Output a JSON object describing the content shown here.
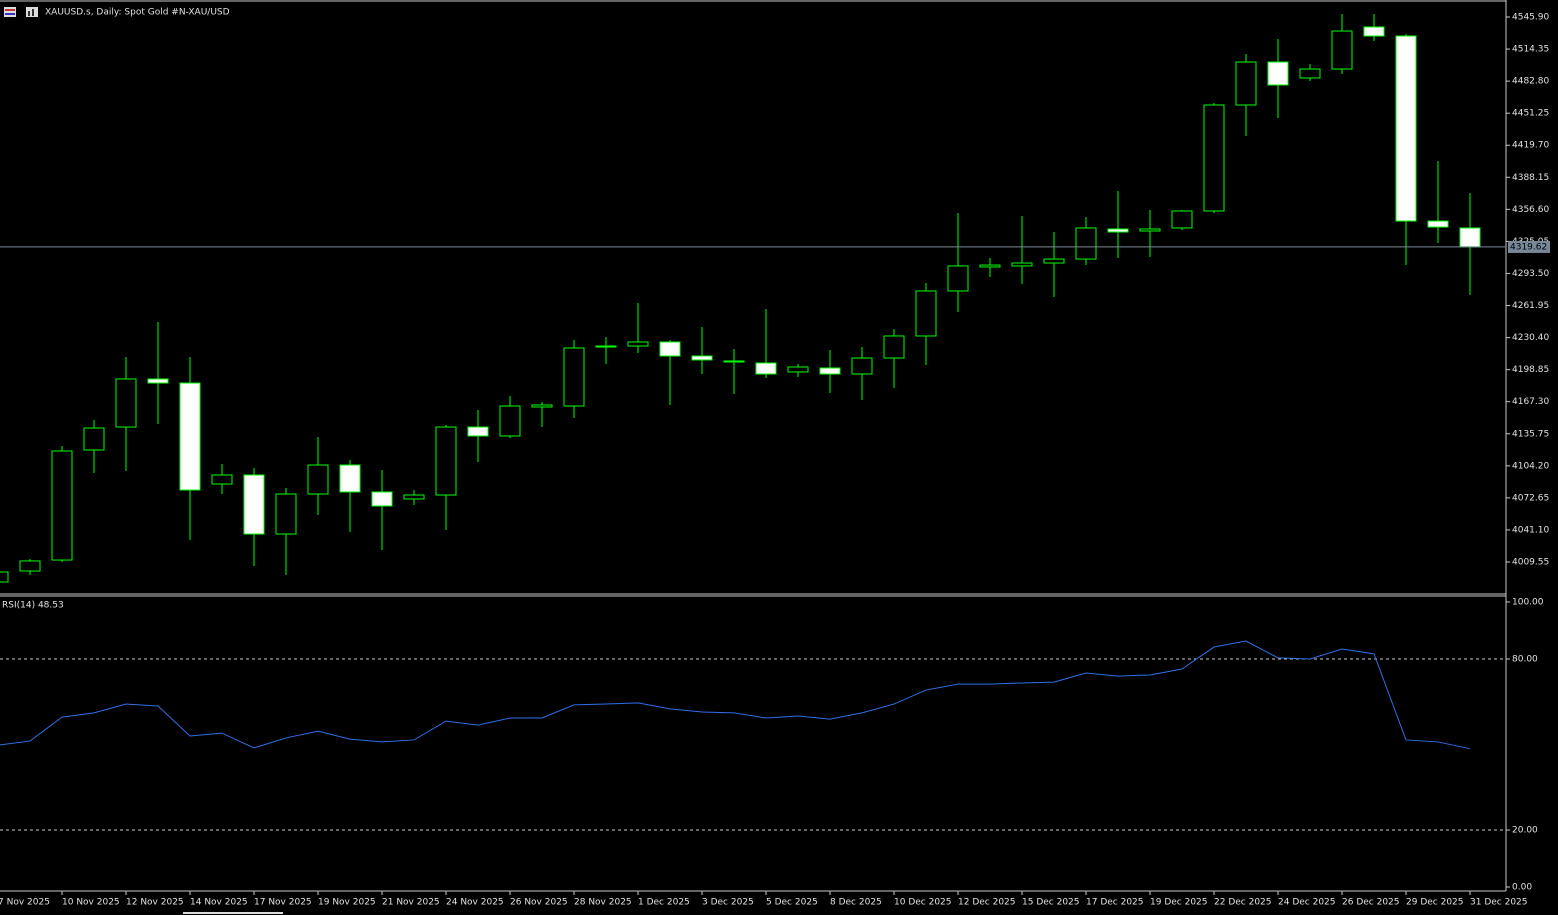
{
  "chart_data": [
    {
      "type": "candlestick",
      "title": "XAUUSD.s, Daily:  Spot Gold #N-XAU/USD",
      "categories": [
        "7 Nov 2025",
        null,
        "10 Nov 2025",
        null,
        "12 Nov 2025",
        null,
        "14 Nov 2025",
        null,
        "17 Nov 2025",
        null,
        "19 Nov 2025",
        null,
        "21 Nov 2025",
        null,
        "24 Nov 2025",
        null,
        "26 Nov 2025",
        null,
        "28 Nov 2025",
        null,
        "1 Dec 2025",
        null,
        "3 Dec 2025",
        null,
        "5 Dec 2025",
        null,
        "8 Dec 2025",
        null,
        "10 Dec 2025",
        null,
        "12 Dec 2025",
        null,
        "15 Dec 2025",
        null,
        "17 Dec 2025",
        null,
        "19 Dec 2025",
        null,
        "22 Dec 2025",
        null,
        "24 Dec 2025",
        null,
        "26 Dec 2025",
        null,
        "29 Dec 2025",
        null,
        "31 Dec 2025"
      ],
      "open": [
        3989.9,
        4000.7,
        4011.5,
        4119.8,
        4142.4,
        4189.7,
        4185.7,
        4086.3,
        4095.2,
        4037.1,
        4076.5,
        4105.0,
        4078.5,
        4071.6,
        4075.5,
        4142.4,
        4133.6,
        4162.1,
        4163.1,
        4221.1,
        4222.1,
        4226.1,
        4212.3,
        4206.4,
        4205.4,
        4196.6,
        4200.5,
        4194.6,
        4210.3,
        4232.0,
        4276.3,
        4299.9,
        4300.9,
        4303.8,
        4307.7,
        4337.3,
        4335.3,
        4338.3,
        4355.0,
        4459.3,
        4501.6,
        4485.9,
        4494.7,
        4536.1,
        4527.2,
        4345.1,
        4338.3
      ],
      "high": [
        4003.7,
        4012.5,
        4123.7,
        4149.3,
        4211.3,
        4245.7,
        4211.3,
        4106.0,
        4102.1,
        4082.4,
        4132.6,
        4110.0,
        4100.1,
        4080.4,
        4144.4,
        4159.2,
        4172.9,
        4167.0,
        4228.0,
        4231.0,
        4264.4,
        4228.0,
        4240.8,
        4219.2,
        4258.5,
        4204.4,
        4218.2,
        4221.1,
        4238.9,
        4284.1,
        4353.0,
        4308.7,
        4350.1,
        4334.3,
        4349.1,
        4374.7,
        4356.0,
        4356.0,
        4461.3,
        4509.5,
        4524.2,
        4499.6,
        4548.9,
        4548.9,
        4529.2,
        4404.2,
        4372.7
      ],
      "low": [
        3986.9,
        3996.8,
        4009.6,
        4097.2,
        4099.1,
        4145.4,
        4031.2,
        4076.5,
        4005.6,
        3996.8,
        4055.8,
        4039.1,
        4021.4,
        4065.7,
        4041.1,
        4108.0,
        4131.6,
        4142.4,
        4151.3,
        4204.4,
        4215.2,
        4164.1,
        4194.6,
        4174.9,
        4190.6,
        4191.6,
        4175.9,
        4169.0,
        4180.8,
        4203.4,
        4255.6,
        4290.0,
        4283.1,
        4270.3,
        4301.8,
        4308.7,
        4309.7,
        4336.3,
        4353.0,
        4428.8,
        4446.5,
        4482.9,
        4489.8,
        4522.3,
        4301.8,
        4323.5,
        4272.3
      ],
      "close": [
        3999.7,
        4010.6,
        4118.8,
        4141.4,
        4189.7,
        4185.7,
        4080.4,
        4095.2,
        4037.1,
        4076.5,
        4105.0,
        4078.5,
        4064.7,
        4075.5,
        4142.4,
        4133.6,
        4163.1,
        4164.1,
        4220.2,
        4222.1,
        4226.1,
        4212.3,
        4208.4,
        4207.4,
        4194.6,
        4201.5,
        4194.6,
        4210.3,
        4232.0,
        4276.3,
        4300.9,
        4301.8,
        4303.8,
        4307.7,
        4338.3,
        4334.3,
        4337.3,
        4355.0,
        4459.3,
        4501.6,
        4479.0,
        4494.7,
        4532.1,
        4527.2,
        4345.1,
        4339.2,
        4319.62
      ],
      "up_color": "#000000",
      "down_color": "#ffffff",
      "line_color": "#00ff00",
      "price_line_color": "#778899",
      "ylim": [
        3979.06,
        4560.66
      ],
      "yticks": [
        {
          "value": 4545.9,
          "label": "4545.90"
        },
        {
          "value": 4514.35,
          "label": "4514.35"
        },
        {
          "value": 4482.8,
          "label": "4482.80"
        },
        {
          "value": 4451.25,
          "label": "4451.25"
        },
        {
          "value": 4419.7,
          "label": "4419.70"
        },
        {
          "value": 4388.15,
          "label": "4388.15"
        },
        {
          "value": 4356.6,
          "label": "4356.60"
        },
        {
          "value": 4325.05,
          "label": "4325.05"
        },
        {
          "value": 4293.5,
          "label": "4293.50"
        },
        {
          "value": 4261.95,
          "label": "4261.95"
        },
        {
          "value": 4230.4,
          "label": "4230.40"
        },
        {
          "value": 4198.85,
          "label": "4198.85"
        },
        {
          "value": 4167.3,
          "label": "4167.30"
        },
        {
          "value": 4135.75,
          "label": "4135.75"
        },
        {
          "value": 4104.2,
          "label": "4104.20"
        },
        {
          "value": 4072.65,
          "label": "4072.65"
        },
        {
          "value": 4041.1,
          "label": "4041.10"
        },
        {
          "value": 4009.55,
          "label": "4009.55"
        }
      ]
    },
    {
      "type": "line",
      "title": "RSI(14) 48.53",
      "color": "#2f6fe8",
      "values": [
        49.8,
        51.2,
        59.6,
        61.1,
        64.2,
        63.5,
        53.0,
        54.0,
        48.8,
        52.3,
        54.7,
        51.9,
        50.9,
        51.6,
        58.2,
        56.8,
        59.3,
        59.3,
        63.9,
        64.2,
        64.6,
        62.5,
        61.4,
        61.1,
        59.3,
        60.0,
        58.9,
        61.1,
        64.2,
        69.1,
        71.2,
        71.2,
        71.6,
        71.9,
        75.1,
        74.0,
        74.4,
        76.5,
        84.2,
        86.3,
        80.4,
        80.0,
        83.5,
        81.8,
        51.6,
        50.9,
        48.53
      ],
      "ylim": [
        0,
        100
      ],
      "yticks": [
        {
          "value": 100,
          "label": "100.00"
        },
        {
          "value": 80,
          "label": "80.00"
        },
        {
          "value": 20,
          "label": "20.00"
        },
        {
          "value": 0,
          "label": "0.00"
        }
      ]
    }
  ]
}
